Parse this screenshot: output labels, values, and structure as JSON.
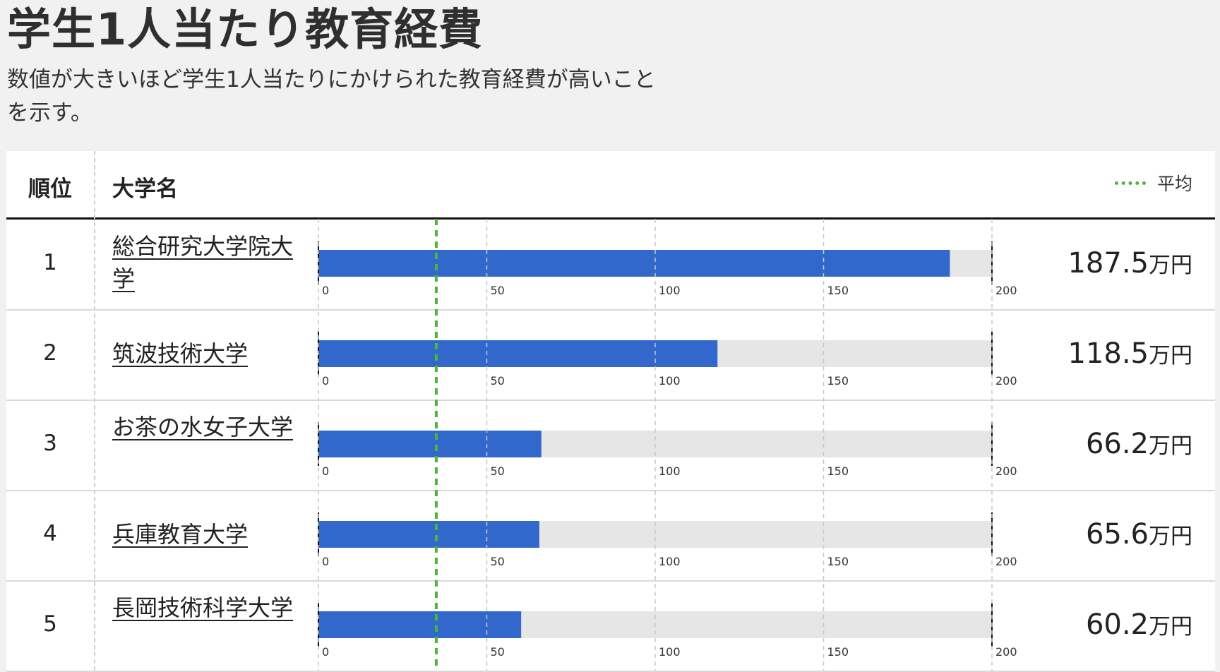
{
  "page": {
    "title": "学生1人当たり教育経費",
    "subtitle": "数値が大きいほど学生1人当たりにかけられた教育経費が高いことを示す。"
  },
  "table": {
    "header_rank": "順位",
    "header_name": "大学名",
    "legend_label": "平均",
    "unit": "万円"
  },
  "chart_data": {
    "type": "bar",
    "orientation": "horizontal",
    "categories": [
      "総合研究大学院大学",
      "筑波技術大学",
      "お茶の水女子大学",
      "兵庫教育大学",
      "長岡技術科学大学"
    ],
    "ranks": [
      "1",
      "2",
      "3",
      "4",
      "5"
    ],
    "values": [
      187.5,
      118.5,
      66.2,
      65.6,
      60.2
    ],
    "value_labels": [
      "187.5",
      "118.5",
      "66.2",
      "65.6",
      "60.2"
    ],
    "average": 35,
    "xlim": [
      0,
      200
    ],
    "ticks": [
      0,
      50,
      100,
      150,
      200
    ],
    "tick_labels": [
      "0",
      "50",
      "100",
      "150",
      "200"
    ],
    "grid": true,
    "legend_position": "top-right",
    "colors": {
      "bar": "#3268cc",
      "track": "#e6e6e6",
      "average": "#4db63a",
      "grid": "#c8c8c8"
    }
  }
}
